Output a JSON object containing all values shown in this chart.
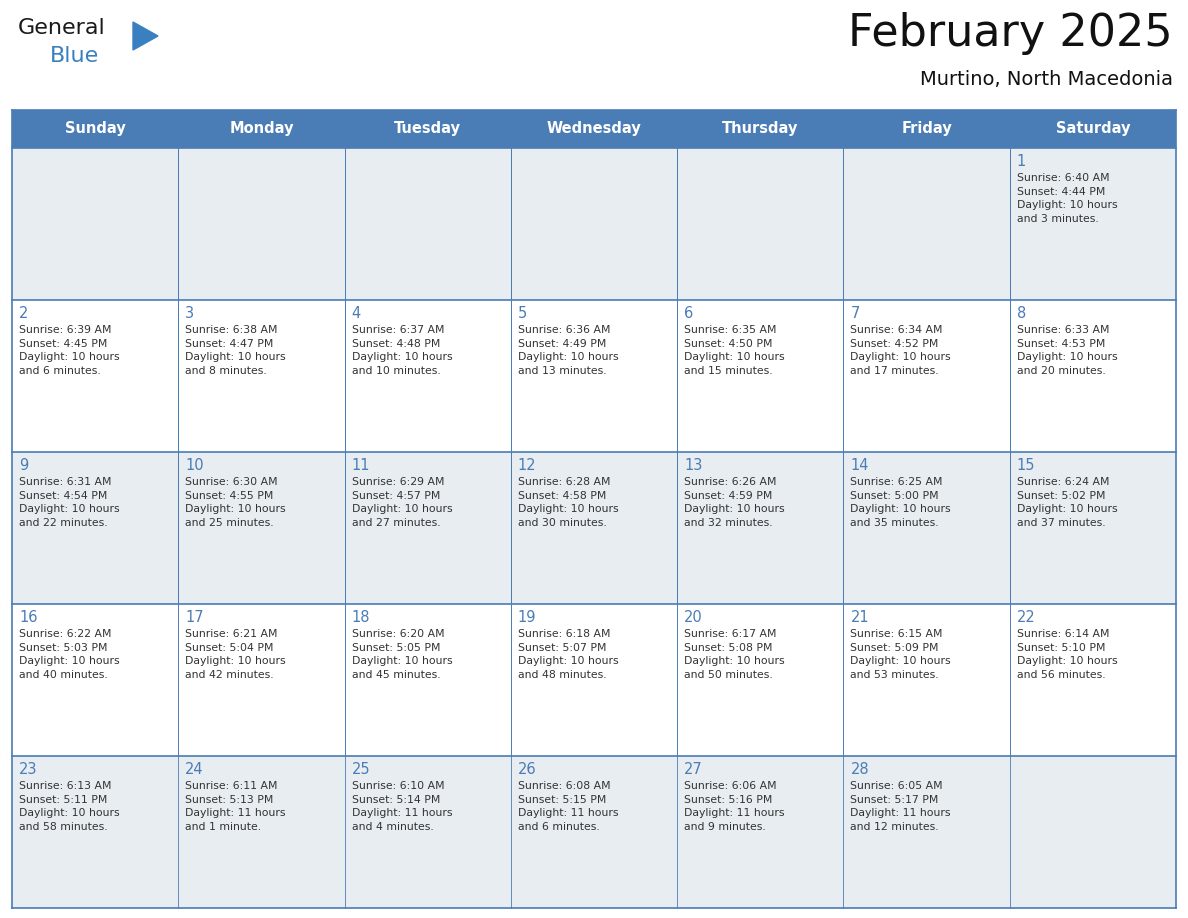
{
  "title": "February 2025",
  "subtitle": "Murtino, North Macedonia",
  "header_bg": "#4a7cb5",
  "header_text": "#ffffff",
  "cell_bg_light": "#e8edf2",
  "cell_bg_white": "#ffffff",
  "cell_border_color": "#4a7cb5",
  "day_number_color": "#4a7cb5",
  "info_text_color": "#333333",
  "logo_general_color": "#1a1a1a",
  "logo_blue_color": "#3a80c0",
  "day_headers": [
    "Sunday",
    "Monday",
    "Tuesday",
    "Wednesday",
    "Thursday",
    "Friday",
    "Saturday"
  ],
  "calendar_data": [
    [
      {
        "day": null,
        "info": null
      },
      {
        "day": null,
        "info": null
      },
      {
        "day": null,
        "info": null
      },
      {
        "day": null,
        "info": null
      },
      {
        "day": null,
        "info": null
      },
      {
        "day": null,
        "info": null
      },
      {
        "day": 1,
        "info": "Sunrise: 6:40 AM\nSunset: 4:44 PM\nDaylight: 10 hours\nand 3 minutes."
      }
    ],
    [
      {
        "day": 2,
        "info": "Sunrise: 6:39 AM\nSunset: 4:45 PM\nDaylight: 10 hours\nand 6 minutes."
      },
      {
        "day": 3,
        "info": "Sunrise: 6:38 AM\nSunset: 4:47 PM\nDaylight: 10 hours\nand 8 minutes."
      },
      {
        "day": 4,
        "info": "Sunrise: 6:37 AM\nSunset: 4:48 PM\nDaylight: 10 hours\nand 10 minutes."
      },
      {
        "day": 5,
        "info": "Sunrise: 6:36 AM\nSunset: 4:49 PM\nDaylight: 10 hours\nand 13 minutes."
      },
      {
        "day": 6,
        "info": "Sunrise: 6:35 AM\nSunset: 4:50 PM\nDaylight: 10 hours\nand 15 minutes."
      },
      {
        "day": 7,
        "info": "Sunrise: 6:34 AM\nSunset: 4:52 PM\nDaylight: 10 hours\nand 17 minutes."
      },
      {
        "day": 8,
        "info": "Sunrise: 6:33 AM\nSunset: 4:53 PM\nDaylight: 10 hours\nand 20 minutes."
      }
    ],
    [
      {
        "day": 9,
        "info": "Sunrise: 6:31 AM\nSunset: 4:54 PM\nDaylight: 10 hours\nand 22 minutes."
      },
      {
        "day": 10,
        "info": "Sunrise: 6:30 AM\nSunset: 4:55 PM\nDaylight: 10 hours\nand 25 minutes."
      },
      {
        "day": 11,
        "info": "Sunrise: 6:29 AM\nSunset: 4:57 PM\nDaylight: 10 hours\nand 27 minutes."
      },
      {
        "day": 12,
        "info": "Sunrise: 6:28 AM\nSunset: 4:58 PM\nDaylight: 10 hours\nand 30 minutes."
      },
      {
        "day": 13,
        "info": "Sunrise: 6:26 AM\nSunset: 4:59 PM\nDaylight: 10 hours\nand 32 minutes."
      },
      {
        "day": 14,
        "info": "Sunrise: 6:25 AM\nSunset: 5:00 PM\nDaylight: 10 hours\nand 35 minutes."
      },
      {
        "day": 15,
        "info": "Sunrise: 6:24 AM\nSunset: 5:02 PM\nDaylight: 10 hours\nand 37 minutes."
      }
    ],
    [
      {
        "day": 16,
        "info": "Sunrise: 6:22 AM\nSunset: 5:03 PM\nDaylight: 10 hours\nand 40 minutes."
      },
      {
        "day": 17,
        "info": "Sunrise: 6:21 AM\nSunset: 5:04 PM\nDaylight: 10 hours\nand 42 minutes."
      },
      {
        "day": 18,
        "info": "Sunrise: 6:20 AM\nSunset: 5:05 PM\nDaylight: 10 hours\nand 45 minutes."
      },
      {
        "day": 19,
        "info": "Sunrise: 6:18 AM\nSunset: 5:07 PM\nDaylight: 10 hours\nand 48 minutes."
      },
      {
        "day": 20,
        "info": "Sunrise: 6:17 AM\nSunset: 5:08 PM\nDaylight: 10 hours\nand 50 minutes."
      },
      {
        "day": 21,
        "info": "Sunrise: 6:15 AM\nSunset: 5:09 PM\nDaylight: 10 hours\nand 53 minutes."
      },
      {
        "day": 22,
        "info": "Sunrise: 6:14 AM\nSunset: 5:10 PM\nDaylight: 10 hours\nand 56 minutes."
      }
    ],
    [
      {
        "day": 23,
        "info": "Sunrise: 6:13 AM\nSunset: 5:11 PM\nDaylight: 10 hours\nand 58 minutes."
      },
      {
        "day": 24,
        "info": "Sunrise: 6:11 AM\nSunset: 5:13 PM\nDaylight: 11 hours\nand 1 minute."
      },
      {
        "day": 25,
        "info": "Sunrise: 6:10 AM\nSunset: 5:14 PM\nDaylight: 11 hours\nand 4 minutes."
      },
      {
        "day": 26,
        "info": "Sunrise: 6:08 AM\nSunset: 5:15 PM\nDaylight: 11 hours\nand 6 minutes."
      },
      {
        "day": 27,
        "info": "Sunrise: 6:06 AM\nSunset: 5:16 PM\nDaylight: 11 hours\nand 9 minutes."
      },
      {
        "day": 28,
        "info": "Sunrise: 6:05 AM\nSunset: 5:17 PM\nDaylight: 11 hours\nand 12 minutes."
      },
      {
        "day": null,
        "info": null
      }
    ]
  ]
}
